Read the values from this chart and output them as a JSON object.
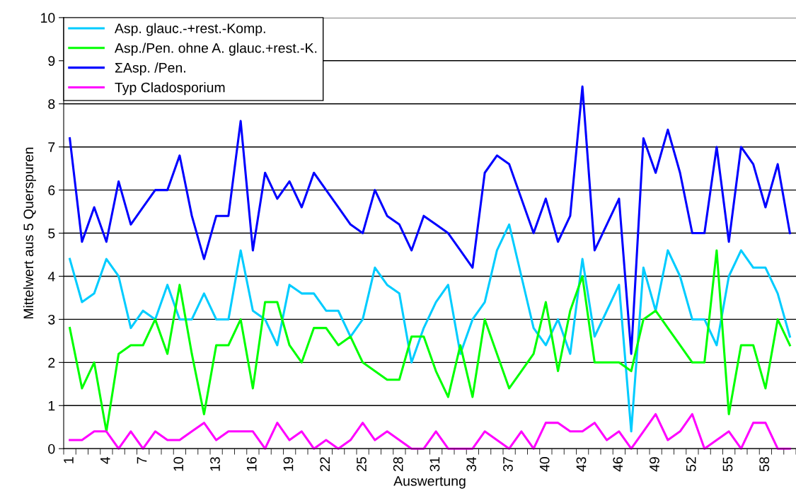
{
  "chart_data": {
    "type": "line",
    "xlabel": "Auswertung",
    "ylabel": "Mittelwert aus 5 Querspuren",
    "categories": [
      "1",
      null,
      null,
      "4",
      null,
      null,
      "7",
      null,
      null,
      "10",
      null,
      null,
      "13",
      null,
      null,
      "16",
      null,
      null,
      "19",
      null,
      null,
      "22",
      null,
      null,
      "25",
      null,
      null,
      "28",
      null,
      null,
      "31",
      null,
      null,
      "34",
      null,
      null,
      "37",
      null,
      null,
      "40",
      null,
      null,
      "43",
      null,
      null,
      "46",
      null,
      null,
      "49",
      null,
      null,
      "52",
      null,
      null,
      "55",
      null,
      null,
      "58",
      null,
      null
    ],
    "ylim": [
      0,
      10
    ],
    "yticks": [
      0,
      1,
      2,
      3,
      4,
      5,
      6,
      7,
      8,
      9,
      10
    ],
    "grid": "y",
    "legend": "top left",
    "marker": "none",
    "line_style": "solid",
    "series": [
      {
        "name": "Asp. glauc.-+rest.-Komp.",
        "color": "#00ccff",
        "values": [
          4.4,
          3.4,
          3.6,
          4.4,
          4.0,
          2.8,
          3.2,
          3.0,
          3.8,
          3.0,
          3.0,
          3.6,
          3.0,
          3.0,
          4.6,
          3.2,
          3.0,
          2.4,
          3.8,
          3.6,
          3.6,
          3.2,
          3.2,
          2.6,
          3.0,
          4.2,
          3.8,
          3.6,
          2.0,
          2.8,
          3.4,
          3.8,
          2.2,
          3.0,
          3.4,
          4.6,
          5.2,
          4.0,
          2.8,
          2.4,
          3.0,
          2.2,
          4.4,
          2.6,
          3.2,
          3.8,
          0.4,
          4.2,
          3.2,
          4.6,
          4.0,
          3.0,
          3.0,
          2.4,
          4.0,
          4.6,
          4.2,
          4.2,
          3.6,
          2.6
        ]
      },
      {
        "name": "Asp./Pen. ohne A. glauc.+rest.-K.",
        "color": "#00ff00",
        "values": [
          2.8,
          1.4,
          2.0,
          0.4,
          2.2,
          2.4,
          2.4,
          3.0,
          2.2,
          3.8,
          2.2,
          0.8,
          2.4,
          2.4,
          3.0,
          1.4,
          3.4,
          3.4,
          2.4,
          2.0,
          2.8,
          2.8,
          2.4,
          2.6,
          2.0,
          1.8,
          1.6,
          1.6,
          2.6,
          2.6,
          1.8,
          1.2,
          2.4,
          1.2,
          3.0,
          2.2,
          1.4,
          1.8,
          2.2,
          3.4,
          1.8,
          3.2,
          4.0,
          2.0,
          2.0,
          2.0,
          1.8,
          3.0,
          3.2,
          2.8,
          2.4,
          2.0,
          2.0,
          4.6,
          0.8,
          2.4,
          2.4,
          1.4,
          3.0,
          2.4
        ]
      },
      {
        "name": "ΣAsp. /Pen.",
        "color": "#0000ff",
        "values": [
          7.2,
          4.8,
          5.6,
          4.8,
          6.2,
          5.2,
          5.6,
          6.0,
          6.0,
          6.8,
          5.4,
          4.4,
          5.4,
          5.4,
          7.6,
          4.6,
          6.4,
          5.8,
          6.2,
          5.6,
          6.4,
          6.0,
          5.6,
          5.2,
          5.0,
          6.0,
          5.4,
          5.2,
          4.6,
          5.4,
          5.2,
          5.0,
          4.6,
          4.2,
          6.4,
          6.8,
          6.6,
          5.8,
          5.0,
          5.8,
          4.8,
          5.4,
          8.4,
          4.6,
          5.2,
          5.8,
          2.2,
          7.2,
          6.4,
          7.4,
          6.4,
          5.0,
          5.0,
          7.0,
          4.8,
          7.0,
          6.6,
          5.6,
          6.6,
          5.0
        ]
      },
      {
        "name": "Typ Cladosporium",
        "color": "#ff00ff",
        "values": [
          0.2,
          0.2,
          0.4,
          0.4,
          0,
          0.4,
          0,
          0.4,
          0.2,
          0.2,
          0.4,
          0.6,
          0.2,
          0.4,
          0.4,
          0.4,
          0,
          0.6,
          0.2,
          0.4,
          0,
          0.2,
          0,
          0.2,
          0.6,
          0.2,
          0.4,
          0.2,
          0,
          0,
          0.4,
          0,
          0,
          0,
          0.4,
          0.2,
          0,
          0.4,
          0,
          0.6,
          0.6,
          0.4,
          0.4,
          0.6,
          0.2,
          0.4,
          0,
          0.4,
          0.8,
          0.2,
          0.4,
          0.8,
          0,
          0.2,
          0.4,
          0,
          0.6,
          0.6,
          0,
          0
        ]
      }
    ]
  }
}
